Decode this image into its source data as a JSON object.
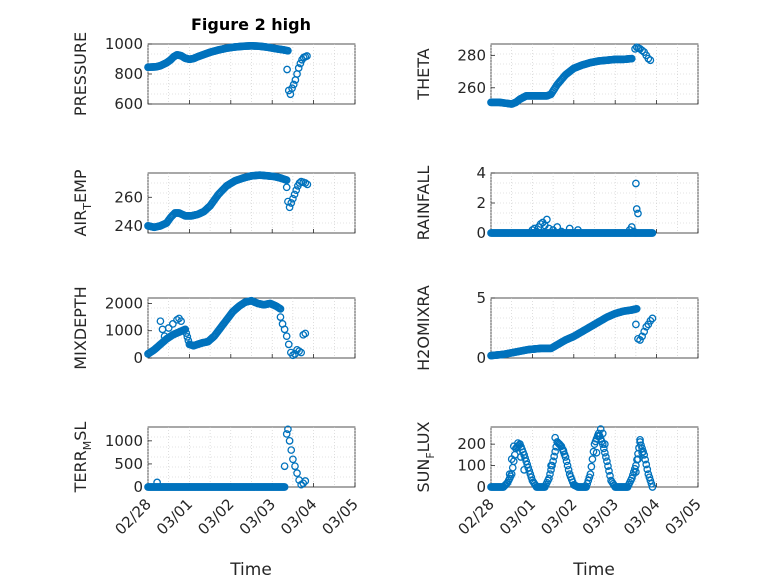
{
  "figure": {
    "title": "Figure 2 high"
  },
  "colors": {
    "marker": "#0072BD",
    "axes": "#262626",
    "grid": "#c8c8c8"
  },
  "x_ticks": [
    {
      "label": "02/28",
      "t": 0
    },
    {
      "label": "03/01",
      "t": 1
    },
    {
      "label": "03/02",
      "t": 2
    },
    {
      "label": "03/03",
      "t": 3
    },
    {
      "label": "03/04",
      "t": 4
    },
    {
      "label": "03/05",
      "t": 5
    }
  ],
  "chart_data": [
    {
      "type": "scatter",
      "ylabel": "PRESSURE",
      "xlim": [
        0,
        5
      ],
      "ylim": [
        600,
        1000
      ],
      "yticks": [
        600,
        800,
        1000
      ],
      "grid": true,
      "segments": [
        {
          "x": [
            0,
            0.2,
            0.3,
            0.45,
            0.55,
            0.62,
            0.7,
            0.8,
            0.9,
            1.0,
            1.1,
            1.2,
            1.35,
            1.5,
            1.7,
            1.9,
            2.1,
            2.3,
            2.5,
            2.7,
            2.9,
            3.1,
            3.25,
            3.38
          ],
          "y": [
            845,
            848,
            855,
            875,
            895,
            915,
            928,
            922,
            905,
            898,
            903,
            915,
            930,
            945,
            960,
            972,
            980,
            985,
            988,
            985,
            978,
            968,
            962,
            955
          ]
        }
      ],
      "points": {
        "x": [
          3.36,
          3.4,
          3.44,
          3.48,
          3.52,
          3.56,
          3.6,
          3.64,
          3.68,
          3.72,
          3.76,
          3.8,
          3.84
        ],
        "y": [
          830,
          690,
          665,
          705,
          730,
          760,
          800,
          840,
          870,
          895,
          910,
          915,
          920
        ]
      }
    },
    {
      "type": "scatter",
      "ylabel": "THETA",
      "xlim": [
        0,
        5
      ],
      "ylim": [
        250,
        287
      ],
      "yticks": [
        260,
        280
      ],
      "grid": true,
      "segments": [
        {
          "x": [
            0,
            0.2,
            0.35,
            0.5,
            0.6,
            0.7,
            0.85,
            1.0,
            1.2,
            1.35,
            1.45,
            1.6,
            1.8,
            2.0,
            2.2,
            2.4,
            2.6,
            2.8,
            3.0,
            3.2,
            3.4
          ],
          "y": [
            251,
            251,
            250.5,
            250,
            251,
            253,
            255,
            255,
            255,
            255,
            256,
            262,
            268,
            272,
            274,
            275.5,
            276.5,
            277,
            277.5,
            277.5,
            278
          ]
        }
      ],
      "points": {
        "x": [
          3.48,
          3.52,
          3.56,
          3.6,
          3.65,
          3.7,
          3.75,
          3.8,
          3.85
        ],
        "y": [
          284,
          285,
          284.5,
          284,
          283,
          282,
          280,
          278,
          277
        ]
      }
    },
    {
      "type": "scatter",
      "ylabel": "AIR_TEMP",
      "xlim": [
        0,
        5
      ],
      "ylim": [
        235,
        277
      ],
      "yticks": [
        240,
        260
      ],
      "grid": true,
      "segments": [
        {
          "x": [
            0,
            0.15,
            0.3,
            0.45,
            0.55,
            0.65,
            0.75,
            0.9,
            1.05,
            1.2,
            1.35,
            1.5,
            1.7,
            1.9,
            2.1,
            2.3,
            2.5,
            2.7,
            2.9,
            3.05,
            3.2,
            3.35
          ],
          "y": [
            240,
            239,
            240,
            242,
            246,
            249,
            249,
            247,
            247,
            248,
            250,
            254,
            262,
            268,
            271.5,
            273.5,
            275,
            275.5,
            275,
            274.5,
            273.5,
            272
          ]
        }
      ],
      "points": {
        "x": [
          3.35,
          3.38,
          3.42,
          3.46,
          3.5,
          3.54,
          3.58,
          3.62,
          3.66,
          3.7,
          3.75,
          3.8,
          3.85
        ],
        "y": [
          267,
          257,
          253,
          256,
          259,
          262,
          265,
          268,
          270,
          271,
          270.5,
          270,
          269
        ]
      }
    },
    {
      "type": "scatter",
      "ylabel": "RAINFALL",
      "xlim": [
        0,
        5
      ],
      "ylim": [
        0,
        4
      ],
      "yticks": [
        0,
        2,
        4
      ],
      "grid": true,
      "segments": [
        {
          "x": [
            0,
            0.5,
            1.0,
            1.5,
            2.0,
            2.5,
            3.0,
            3.5,
            3.9
          ],
          "y": [
            0,
            0,
            0,
            0,
            0,
            0,
            0,
            0,
            0
          ]
        }
      ],
      "points": {
        "x": [
          1.0,
          1.05,
          1.1,
          1.15,
          1.2,
          1.25,
          1.3,
          1.35,
          1.4,
          1.5,
          1.6,
          1.7,
          1.9,
          2.1,
          3.35,
          3.4,
          3.45,
          3.5,
          3.52,
          3.55
        ],
        "y": [
          0.2,
          0.3,
          0.1,
          0.4,
          0.6,
          0.7,
          0.5,
          0.9,
          0.3,
          0.2,
          0.4,
          0.1,
          0.3,
          0.2,
          0.2,
          0.4,
          0.1,
          3.3,
          1.6,
          1.3
        ]
      }
    },
    {
      "type": "scatter",
      "ylabel": "MIXDEPTH",
      "xlim": [
        0,
        5
      ],
      "ylim": [
        0,
        2200
      ],
      "yticks": [
        0,
        1000,
        2000
      ],
      "grid": true,
      "segments": [
        {
          "x": [
            0,
            0.15,
            0.3,
            0.45,
            0.6,
            0.75,
            0.9,
            1.0,
            1.1,
            1.2,
            1.3,
            1.45,
            1.6,
            1.75,
            1.9,
            2.05,
            2.2,
            2.35,
            2.5,
            2.65,
            2.8,
            2.95,
            3.1,
            3.2
          ],
          "y": [
            150,
            300,
            500,
            700,
            850,
            950,
            1050,
            500,
            450,
            500,
            550,
            600,
            800,
            1100,
            1400,
            1700,
            1900,
            2050,
            2100,
            2000,
            1950,
            2000,
            1900,
            1800
          ]
        }
      ],
      "points": {
        "x": [
          0.3,
          0.35,
          0.4,
          0.5,
          0.6,
          0.7,
          0.75,
          0.8,
          3.2,
          3.25,
          3.3,
          3.35,
          3.4,
          3.45,
          3.5,
          3.55,
          3.6,
          3.65,
          3.7,
          3.75,
          3.8
        ],
        "y": [
          1350,
          1050,
          800,
          1100,
          1250,
          1400,
          1450,
          1350,
          1500,
          1250,
          1050,
          800,
          500,
          200,
          100,
          150,
          300,
          250,
          200,
          850,
          900
        ]
      }
    },
    {
      "type": "scatter",
      "ylabel": "H2OMIXRA",
      "xlim": [
        0,
        5
      ],
      "ylim": [
        0,
        5
      ],
      "yticks": [
        0,
        5
      ],
      "grid": true,
      "segments": [
        {
          "x": [
            0,
            0.3,
            0.6,
            0.9,
            1.2,
            1.45,
            1.6,
            1.8,
            2.0,
            2.2,
            2.4,
            2.6,
            2.8,
            3.0,
            3.2,
            3.4,
            3.52
          ],
          "y": [
            0.2,
            0.3,
            0.5,
            0.7,
            0.8,
            0.8,
            1.1,
            1.5,
            1.8,
            2.2,
            2.6,
            3.0,
            3.4,
            3.7,
            3.9,
            4.0,
            4.1
          ]
        }
      ],
      "points": {
        "x": [
          3.5,
          3.55,
          3.6,
          3.65,
          3.7,
          3.75,
          3.8,
          3.85,
          3.9
        ],
        "y": [
          2.8,
          1.6,
          1.5,
          1.8,
          2.2,
          2.6,
          2.8,
          3.1,
          3.3
        ]
      }
    },
    {
      "type": "scatter",
      "ylabel": "TERR_MSL",
      "xlim": [
        0,
        5
      ],
      "ylim": [
        0,
        1300
      ],
      "yticks": [
        0,
        500,
        1000
      ],
      "grid": true,
      "segments": [
        {
          "x": [
            0,
            0.5,
            1.0,
            1.5,
            2.0,
            2.5,
            3.0,
            3.3
          ],
          "y": [
            0,
            0,
            0,
            0,
            0,
            0,
            0,
            0
          ]
        }
      ],
      "points": {
        "x": [
          0.22,
          3.3,
          3.35,
          3.38,
          3.42,
          3.46,
          3.5,
          3.55,
          3.6,
          3.65,
          3.7,
          3.75,
          3.8
        ],
        "y": [
          100,
          450,
          1150,
          1250,
          1000,
          800,
          600,
          450,
          300,
          150,
          50,
          80,
          130
        ]
      }
    },
    {
      "type": "scatter",
      "ylabel": "SUN_FLUX",
      "xlim": [
        0,
        5
      ],
      "ylim": [
        0,
        280
      ],
      "yticks": [
        0,
        100,
        200
      ],
      "grid": true,
      "segments": [
        {
          "x": [
            0,
            0.1,
            0.2,
            0.3,
            0.4,
            0.5,
            0.6,
            0.7,
            0.8,
            0.9,
            1.0,
            1.1,
            1.2,
            1.3,
            1.4,
            1.5,
            1.6,
            1.7,
            1.8,
            1.9,
            2.0,
            2.1,
            2.2,
            2.3,
            2.4,
            2.5,
            2.6,
            2.7,
            2.8,
            2.9,
            3.0,
            3.1,
            3.2,
            3.3,
            3.4,
            3.5,
            3.6,
            3.7,
            3.8,
            3.9
          ],
          "y": [
            0,
            0,
            0,
            0,
            20,
            60,
            180,
            200,
            150,
            90,
            30,
            0,
            0,
            0,
            40,
            120,
            210,
            190,
            140,
            60,
            10,
            0,
            0,
            0,
            60,
            200,
            250,
            200,
            120,
            30,
            0,
            0,
            0,
            0,
            40,
            100,
            210,
            150,
            60,
            0
          ]
        }
      ],
      "points": {
        "x": [
          0.45,
          0.5,
          0.55,
          0.65,
          0.72,
          0.8,
          1.45,
          1.55,
          1.65,
          1.75,
          2.55,
          2.6,
          2.65,
          2.7,
          2.75,
          3.5,
          3.55,
          3.6,
          3.65
        ],
        "y": [
          60,
          130,
          190,
          205,
          140,
          80,
          100,
          230,
          200,
          170,
          160,
          240,
          270,
          250,
          200,
          70,
          130,
          220,
          160
        ]
      }
    }
  ]
}
